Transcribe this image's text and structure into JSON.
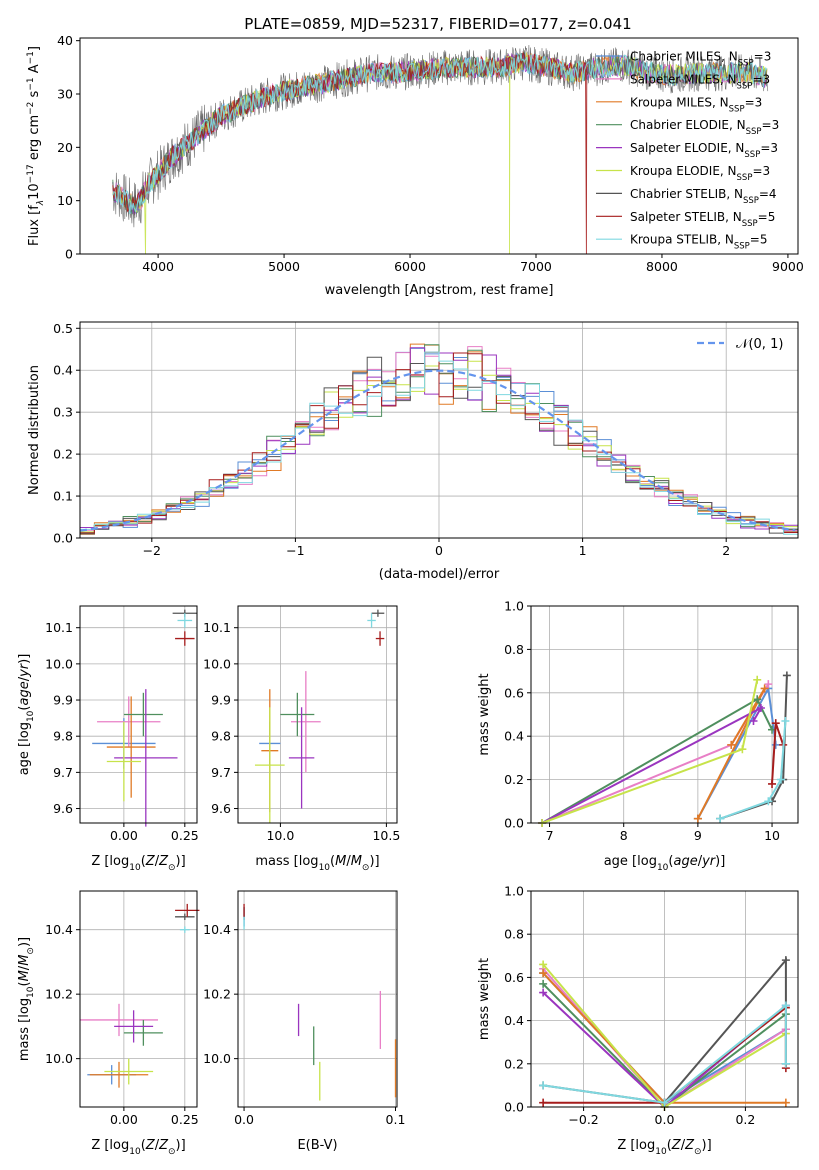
{
  "figure": {
    "title": "PLATE=0859, MJD=52317, FIBERID=0177, z=0.041"
  },
  "colors": {
    "chabrier_miles": "#5b8fd6",
    "salpeter_miles": "#e87fc6",
    "kroupa_miles": "#e07a26",
    "chabrier_elodie": "#4f8f5e",
    "salpeter_elodie": "#9a35bf",
    "kroupa_elodie": "#c7e34a",
    "chabrier_stelib": "#555555",
    "salpeter_stelib": "#a61c1c",
    "kroupa_stelib": "#7fd8e0",
    "normal": "#6495ed",
    "grid": "#b0b0b0"
  },
  "chart_data": [
    {
      "id": "spectrum",
      "type": "line",
      "xlabel": "wavelength [Angstrom, rest frame]",
      "ylabel_parts": [
        "Flux [f",
        "λ",
        "10",
        "−17",
        " erg cm",
        "−2",
        " s",
        "−1",
        " A",
        "−1",
        "]"
      ],
      "xlim": [
        3380,
        9080
      ],
      "ylim": [
        0,
        40.5
      ],
      "xticks": [
        4000,
        5000,
        6000,
        7000,
        8000,
        9000
      ],
      "yticks": [
        0,
        10,
        20,
        30,
        40
      ],
      "grid": false,
      "legend_position": "top-right",
      "series": [
        {
          "key": "chabrier_miles",
          "name_base": "Chabrier MILES, N",
          "name_sub": "SSP",
          "name_val": "=3"
        },
        {
          "key": "salpeter_miles",
          "name_base": "Salpeter MILES, N",
          "name_sub": "SSP",
          "name_val": "=3"
        },
        {
          "key": "kroupa_miles",
          "name_base": "Kroupa MILES, N",
          "name_sub": "SSP",
          "name_val": "=3"
        },
        {
          "key": "chabrier_elodie",
          "name_base": "Chabrier ELODIE, N",
          "name_sub": "SSP",
          "name_val": "=3"
        },
        {
          "key": "salpeter_elodie",
          "name_base": "Salpeter ELODIE, N",
          "name_sub": "SSP",
          "name_val": "=3"
        },
        {
          "key": "kroupa_elodie",
          "name_base": "Kroupa ELODIE, N",
          "name_sub": "SSP",
          "name_val": "=3"
        },
        {
          "key": "chabrier_stelib",
          "name_base": "Chabrier STELIB, N",
          "name_sub": "SSP",
          "name_val": "=4"
        },
        {
          "key": "salpeter_stelib",
          "name_base": "Salpeter STELIB, N",
          "name_sub": "SSP",
          "name_val": "=5"
        },
        {
          "key": "kroupa_stelib",
          "name_base": "Kroupa STELIB, N",
          "name_sub": "SSP",
          "name_val": "=5"
        }
      ],
      "continuum": [
        [
          3640,
          12
        ],
        [
          3700,
          11
        ],
        [
          3800,
          9
        ],
        [
          3860,
          10
        ],
        [
          3920,
          13
        ],
        [
          4000,
          15
        ],
        [
          4100,
          18
        ],
        [
          4200,
          20
        ],
        [
          4300,
          22
        ],
        [
          4400,
          24
        ],
        [
          4500,
          26
        ],
        [
          4700,
          28
        ],
        [
          4900,
          30
        ],
        [
          5100,
          31
        ],
        [
          5300,
          32
        ],
        [
          5500,
          33
        ],
        [
          5700,
          34
        ],
        [
          5900,
          34
        ],
        [
          6100,
          34.5
        ],
        [
          6300,
          35
        ],
        [
          6500,
          35
        ],
        [
          6700,
          35
        ],
        [
          6900,
          36
        ],
        [
          7100,
          35
        ],
        [
          7300,
          34
        ],
        [
          7500,
          35
        ],
        [
          7700,
          35.5
        ],
        [
          7900,
          34
        ],
        [
          8100,
          33.5
        ],
        [
          8300,
          34
        ],
        [
          8500,
          34
        ],
        [
          8700,
          34
        ],
        [
          8840,
          33
        ]
      ],
      "dropouts": {
        "kroupa_elodie": [
          3900,
          6790
        ],
        "salpeter_stelib": [
          7400
        ]
      },
      "stelib_end": 7400,
      "miles_end": 7400
    },
    {
      "id": "residuals",
      "type": "histogram",
      "xlabel": "(data-model)/error",
      "ylabel": "Normed distribution",
      "xlim": [
        -2.5,
        2.5
      ],
      "ylim": [
        0,
        0.515
      ],
      "xticks": [
        -2,
        -1,
        0,
        1,
        2
      ],
      "yticks": [
        0.0,
        0.1,
        0.2,
        0.3,
        0.4,
        0.5
      ],
      "bin_width": 0.1,
      "grid": true,
      "legend_position": "top-right",
      "normal_label": "(0, 1)",
      "normal_curve": "N(0,1) standard normal"
    },
    {
      "id": "age_vs_Z",
      "type": "scatter",
      "xlabel": "Z [log",
      "ylabel": "age  [log",
      "xlim": [
        -0.18,
        0.3
      ],
      "ylim": [
        9.56,
        10.16
      ],
      "xticks": [
        0.0,
        0.25
      ],
      "yticks": [
        9.6,
        9.7,
        9.8,
        9.9,
        10.0,
        10.1
      ],
      "grid": true,
      "points": [
        {
          "key": "chabrier_miles",
          "x": 0.0,
          "y": 9.78,
          "xerr": 0.13,
          "yerr": 0.07
        },
        {
          "key": "salpeter_miles",
          "x": 0.02,
          "y": 9.84,
          "xerr": 0.13,
          "yerr": 0.07
        },
        {
          "key": "kroupa_miles",
          "x": 0.03,
          "y": 9.77,
          "xerr": 0.1,
          "yerr": 0.14
        },
        {
          "key": "chabrier_elodie",
          "x": 0.08,
          "y": 9.86,
          "xerr": 0.08,
          "yerr": 0.06
        },
        {
          "key": "salpeter_elodie",
          "x": 0.09,
          "y": 9.74,
          "xerr": 0.13,
          "yerr": 0.19
        },
        {
          "key": "kroupa_elodie",
          "x": 0.0,
          "y": 9.73,
          "xerr": 0.07,
          "yerr": 0.11
        },
        {
          "key": "chabrier_stelib",
          "x": 0.25,
          "y": 10.14,
          "xerr": 0.05,
          "yerr": 0.01
        },
        {
          "key": "salpeter_stelib",
          "x": 0.25,
          "y": 10.07,
          "xerr": 0.04,
          "yerr": 0.02
        },
        {
          "key": "kroupa_stelib",
          "x": 0.25,
          "y": 10.12,
          "xerr": 0.03,
          "yerr": 0.02
        }
      ]
    },
    {
      "id": "age_vs_mass",
      "type": "scatter",
      "xlabel": "mass [log",
      "xlim": [
        9.8,
        10.55
      ],
      "ylim": [
        9.56,
        10.16
      ],
      "xticks": [
        10.0,
        10.5
      ],
      "yticks": [
        9.6,
        9.7,
        9.8,
        9.9,
        10.0,
        10.1
      ],
      "grid": true,
      "points": [
        {
          "key": "chabrier_miles",
          "x": 9.95,
          "y": 9.78,
          "xerr": 0.05,
          "yerr": 0.06
        },
        {
          "key": "salpeter_miles",
          "x": 10.12,
          "y": 9.84,
          "xerr": 0.07,
          "yerr": 0.14
        },
        {
          "key": "kroupa_miles",
          "x": 9.95,
          "y": 9.76,
          "xerr": 0.04,
          "yerr": 0.17
        },
        {
          "key": "chabrier_elodie",
          "x": 10.08,
          "y": 9.86,
          "xerr": 0.08,
          "yerr": 0.06
        },
        {
          "key": "salpeter_elodie",
          "x": 10.1,
          "y": 9.74,
          "xerr": 0.06,
          "yerr": 0.14
        },
        {
          "key": "kroupa_elodie",
          "x": 9.95,
          "y": 9.72,
          "xerr": 0.07,
          "yerr": 0.16
        },
        {
          "key": "chabrier_stelib",
          "x": 10.46,
          "y": 10.14,
          "xerr": 0.03,
          "yerr": 0.01
        },
        {
          "key": "salpeter_stelib",
          "x": 10.47,
          "y": 10.07,
          "xerr": 0.02,
          "yerr": 0.02
        },
        {
          "key": "kroupa_stelib",
          "x": 10.43,
          "y": 10.12,
          "xerr": 0.02,
          "yerr": 0.02
        }
      ]
    },
    {
      "id": "weight_vs_age",
      "type": "line",
      "xlabel": "age  [log",
      "ylabel": "mass weight",
      "xlim": [
        6.75,
        10.35
      ],
      "ylim": [
        0,
        1.0
      ],
      "xticks": [
        7,
        8,
        9,
        10
      ],
      "yticks": [
        0.0,
        0.2,
        0.4,
        0.6,
        0.8,
        1.0
      ],
      "grid": true,
      "series": [
        {
          "key": "chabrier_miles",
          "points": [
            [
              9.0,
              0.02
            ],
            [
              9.95,
              0.62
            ],
            [
              10.05,
              0.36
            ]
          ]
        },
        {
          "key": "salpeter_miles",
          "points": [
            [
              6.9,
              0.0
            ],
            [
              9.45,
              0.36
            ],
            [
              9.95,
              0.64
            ]
          ]
        },
        {
          "key": "kroupa_miles",
          "points": [
            [
              9.0,
              0.02
            ],
            [
              9.9,
              0.62
            ],
            [
              9.45,
              0.36
            ]
          ]
        },
        {
          "key": "chabrier_elodie",
          "points": [
            [
              6.9,
              0.0
            ],
            [
              9.8,
              0.57
            ],
            [
              10.0,
              0.43
            ]
          ]
        },
        {
          "key": "salpeter_elodie",
          "points": [
            [
              6.9,
              0.0
            ],
            [
              9.85,
              0.53
            ],
            [
              9.75,
              0.47
            ]
          ]
        },
        {
          "key": "kroupa_elodie",
          "points": [
            [
              6.9,
              0.0
            ],
            [
              9.6,
              0.34
            ],
            [
              9.8,
              0.66
            ]
          ]
        },
        {
          "key": "chabrier_stelib",
          "points": [
            [
              9.3,
              0.02
            ],
            [
              10.0,
              0.1
            ],
            [
              10.15,
              0.2
            ],
            [
              10.2,
              0.68
            ]
          ]
        },
        {
          "key": "salpeter_stelib",
          "points": [
            [
              10.0,
              0.18
            ],
            [
              10.05,
              0.46
            ],
            [
              10.15,
              0.36
            ]
          ]
        },
        {
          "key": "kroupa_stelib",
          "points": [
            [
              9.3,
              0.02
            ],
            [
              9.95,
              0.1
            ],
            [
              10.12,
              0.2
            ],
            [
              10.18,
              0.47
            ]
          ]
        }
      ]
    },
    {
      "id": "mass_vs_Z",
      "type": "scatter",
      "xlabel": "Z [log",
      "ylabel": "mass [log",
      "xlim": [
        -0.18,
        0.3
      ],
      "ylim": [
        9.85,
        10.52
      ],
      "xticks": [
        0.0,
        0.25
      ],
      "yticks": [
        10.0,
        10.2,
        10.4
      ],
      "grid": true,
      "points": [
        {
          "key": "chabrier_miles",
          "x": -0.05,
          "y": 9.95,
          "xerr": 0.1,
          "yerr": 0.03
        },
        {
          "key": "salpeter_miles",
          "x": -0.02,
          "y": 10.12,
          "xerr": 0.16,
          "yerr": 0.05
        },
        {
          "key": "kroupa_miles",
          "x": -0.02,
          "y": 9.95,
          "xerr": 0.12,
          "yerr": 0.04
        },
        {
          "key": "chabrier_elodie",
          "x": 0.08,
          "y": 10.08,
          "xerr": 0.08,
          "yerr": 0.04
        },
        {
          "key": "salpeter_elodie",
          "x": 0.04,
          "y": 10.1,
          "xerr": 0.08,
          "yerr": 0.05
        },
        {
          "key": "kroupa_elodie",
          "x": 0.02,
          "y": 9.96,
          "xerr": 0.1,
          "yerr": 0.04
        },
        {
          "key": "chabrier_stelib",
          "x": 0.25,
          "y": 10.44,
          "xerr": 0.04,
          "yerr": 0.01
        },
        {
          "key": "salpeter_stelib",
          "x": 0.26,
          "y": 10.46,
          "xerr": 0.05,
          "yerr": 0.02
        },
        {
          "key": "kroupa_stelib",
          "x": 0.25,
          "y": 10.4,
          "xerr": 0.02,
          "yerr": 0.01
        }
      ]
    },
    {
      "id": "mass_vs_ebv",
      "type": "scatter",
      "xlabel": "E(B-V)",
      "xlim": [
        -0.004,
        0.101
      ],
      "ylim": [
        9.85,
        10.52
      ],
      "xticks": [
        0.0,
        0.1
      ],
      "yticks": [
        10.0,
        10.2,
        10.4
      ],
      "grid": true,
      "points": [
        {
          "key": "chabrier_miles",
          "x": 0.0,
          "y": 10.44,
          "yerr": 0.03
        },
        {
          "key": "salpeter_miles",
          "x": 0.09,
          "y": 10.12,
          "yerr": 0.09
        },
        {
          "key": "kroupa_miles",
          "x": 0.1,
          "y": 9.97,
          "yerr": 0.09
        },
        {
          "key": "chabrier_elodie",
          "x": 0.046,
          "y": 10.04,
          "yerr": 0.06
        },
        {
          "key": "salpeter_elodie",
          "x": 0.036,
          "y": 10.12,
          "yerr": 0.05
        },
        {
          "key": "kroupa_elodie",
          "x": 0.05,
          "y": 9.93,
          "yerr": 0.06
        },
        {
          "key": "chabrier_stelib",
          "x": 0.0,
          "y": 10.45,
          "yerr": 0.02
        },
        {
          "key": "salpeter_stelib",
          "x": 0.0,
          "y": 10.46,
          "yerr": 0.02
        },
        {
          "key": "kroupa_stelib",
          "x": 0.0,
          "y": 10.42,
          "yerr": 0.02
        }
      ]
    },
    {
      "id": "weight_vs_Z",
      "type": "line",
      "xlabel": "Z [log",
      "ylabel": "mass weight",
      "xlim": [
        -0.33,
        0.33
      ],
      "ylim": [
        0,
        1.0
      ],
      "xticks": [
        -0.2,
        0.0,
        0.2
      ],
      "yticks": [
        0.0,
        0.2,
        0.4,
        0.6,
        0.8,
        1.0
      ],
      "grid": true,
      "series": [
        {
          "key": "chabrier_miles",
          "points": [
            [
              -0.3,
              0.62
            ],
            [
              0.0,
              0.02
            ],
            [
              0.3,
              0.36
            ]
          ]
        },
        {
          "key": "salpeter_miles",
          "points": [
            [
              -0.3,
              0.64
            ],
            [
              0.0,
              0.0
            ],
            [
              0.3,
              0.36
            ]
          ]
        },
        {
          "key": "kroupa_miles",
          "points": [
            [
              -0.3,
              0.62
            ],
            [
              0.0,
              0.02
            ],
            [
              0.3,
              0.02
            ]
          ]
        },
        {
          "key": "chabrier_elodie",
          "points": [
            [
              -0.3,
              0.57
            ],
            [
              0.0,
              0.0
            ],
            [
              0.3,
              0.43
            ]
          ]
        },
        {
          "key": "salpeter_elodie",
          "points": [
            [
              -0.3,
              0.53
            ],
            [
              0.0,
              0.0
            ],
            [
              0.3,
              0.47
            ]
          ]
        },
        {
          "key": "kroupa_elodie",
          "points": [
            [
              -0.3,
              0.66
            ],
            [
              0.0,
              0.0
            ],
            [
              0.3,
              0.34
            ]
          ]
        },
        {
          "key": "chabrier_stelib",
          "points": [
            [
              -0.3,
              0.1
            ],
            [
              0.0,
              0.02
            ],
            [
              0.3,
              0.68
            ],
            [
              0.3,
              0.2
            ]
          ]
        },
        {
          "key": "salpeter_stelib",
          "points": [
            [
              -0.3,
              0.02
            ],
            [
              0.0,
              0.02
            ],
            [
              0.3,
              0.46
            ],
            [
              0.3,
              0.18
            ]
          ]
        },
        {
          "key": "kroupa_stelib",
          "points": [
            [
              -0.3,
              0.1
            ],
            [
              0.0,
              0.02
            ],
            [
              0.3,
              0.47
            ],
            [
              0.3,
              0.2
            ]
          ]
        }
      ]
    }
  ]
}
